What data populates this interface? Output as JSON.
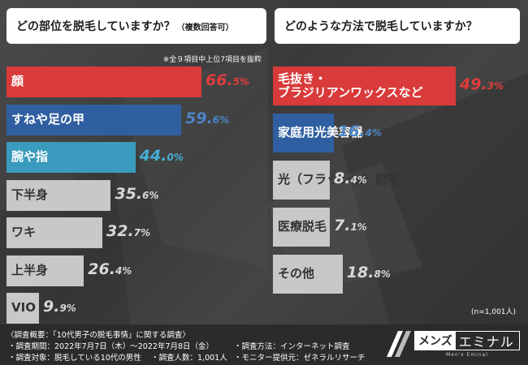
{
  "colors": {
    "red": "#d93a3a",
    "blue": "#2f5fa0",
    "teal": "#3b9bbe",
    "gray": "#c8c8c8",
    "pct_red": "#e03c3c",
    "pct_blue": "#4a86c8",
    "pct_teal": "#46b0d6",
    "pct_gray": "#d8d8d8"
  },
  "left_title": "どの部位を脱毛していますか？",
  "left_title_sub": "（複数回答可）",
  "right_title": "どのような方法で脱毛していますか？",
  "note": "※全９項目中上位7項目を抜粋",
  "n_label": "(n=1,001人)",
  "chart_data": [
    {
      "type": "bar",
      "orientation": "horizontal",
      "title": "どの部位を脱毛していますか？（複数回答可）",
      "unit": "%",
      "categories": [
        "顔",
        "すねや足の甲",
        "腕や指",
        "下半身",
        "ワキ",
        "上半身",
        "VIO"
      ],
      "values": [
        66.5,
        59.6,
        44.0,
        35.6,
        32.7,
        26.4,
        9.9
      ],
      "value_labels": [
        [
          "66.",
          "5%"
        ],
        [
          "59.",
          "6%"
        ],
        [
          "44.",
          "0%"
        ],
        [
          "35.",
          "6%"
        ],
        [
          "32.",
          "7%"
        ],
        [
          "26.",
          "4%"
        ],
        [
          "9.",
          "9%"
        ]
      ],
      "bar_colors": [
        "red",
        "blue",
        "teal",
        "gray",
        "gray",
        "gray",
        "gray"
      ]
    },
    {
      "type": "bar",
      "orientation": "horizontal",
      "title": "どのような方法で脱毛していますか？",
      "unit": "%",
      "categories": [
        "毛抜き・\nブラジリアンワックスなど",
        "家庭用光美容器",
        "光（フラッシュ）脱毛",
        "医療脱毛",
        "その他"
      ],
      "values": [
        49.3,
        16.4,
        8.4,
        7.1,
        18.8
      ],
      "value_labels": [
        [
          "49.",
          "3%"
        ],
        [
          "16.",
          "4%"
        ],
        [
          "8.",
          "4%"
        ],
        [
          "7.",
          "1%"
        ],
        [
          "18.",
          "8%"
        ]
      ],
      "bar_colors": [
        "red",
        "blue",
        "gray",
        "gray",
        "gray"
      ]
    }
  ],
  "footer": {
    "line1": "〈調査概要：「10代男子の脱毛事情」に関する調査〉",
    "line2a": "・調査期間：2022年7月7日（木）〜2022年7月8日（金）",
    "line2b": "・調査方法：インターネット調査",
    "line3a": "・調査対象：脱毛している10代の男性",
    "line3b": "・調査人数：1,001人",
    "line3c": "・モニター提供元：ゼネラルリサーチ"
  },
  "logo": {
    "a": "メンズ",
    "b": "エミナル",
    "sub": "Men's Eminal"
  }
}
